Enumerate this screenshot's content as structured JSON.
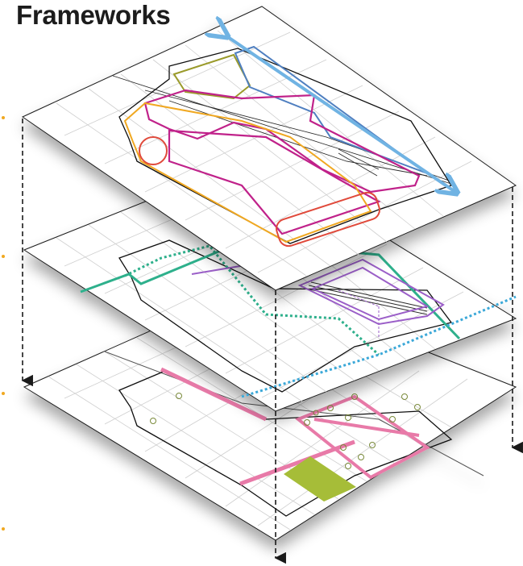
{
  "header": {
    "title": "Frameworks"
  },
  "colors": {
    "background": "#ffffff",
    "plane_fill": "#ffffff",
    "plane_edge": "#1a1a1a",
    "street": "#cfcfcf",
    "rail": "#2b2b2b",
    "blue_axis": "#6fb3e3",
    "blue_zone": "#4f7fc0",
    "olive_zone": "#9a9a2a",
    "magenta_zone": "#c0208a",
    "orange_zone": "#f0a820",
    "red_circle": "#e04a3a",
    "teal_path": "#2fb08c",
    "teal_dotted": "#2fb08c",
    "cyan_dotted": "#3aa8d8",
    "purple_zone": "#9b5fc8",
    "pink_band": "#e87aa8",
    "green_block": "#a6bd38",
    "tree_ring": "#7a8a3a",
    "connector_arrow": "#1a1a1a",
    "side_marker": "#f0a820"
  },
  "diagram": {
    "layers": [
      {
        "name": "top",
        "features": [
          "blue-double-arrow",
          "olive-zone",
          "magenta-zones",
          "orange-zone",
          "red-circle",
          "red-rounded-rect"
        ]
      },
      {
        "name": "middle",
        "features": [
          "teal-path",
          "teal-dotted-path",
          "cyan-dotted-path",
          "purple-zones"
        ]
      },
      {
        "name": "bottom",
        "features": [
          "pink-bands",
          "green-block",
          "tree-rings"
        ]
      }
    ]
  }
}
